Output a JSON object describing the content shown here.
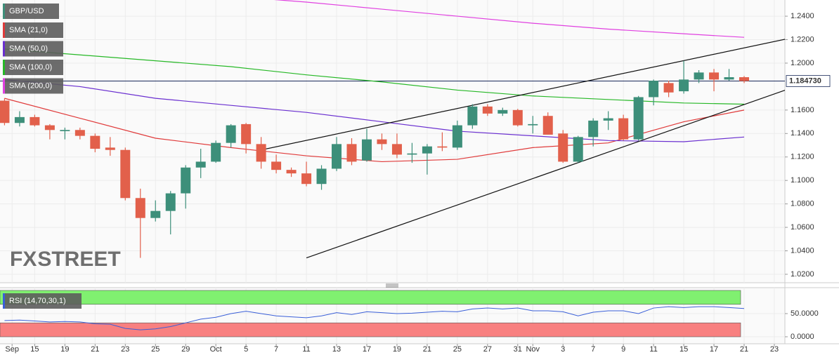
{
  "chart_data": [
    {
      "type": "candlestick",
      "name": "GBP/USD",
      "up_color": "#3d8f7a",
      "down_color": "#e2604b",
      "open": [
        1.168,
        1.149,
        1.154,
        1.147,
        1.142,
        1.143,
        1.138,
        1.128,
        1.126,
        1.085,
        1.068,
        1.074,
        1.089,
        1.111,
        1.116,
        1.132,
        1.148,
        1.131,
        1.116,
        1.109,
        1.106,
        1.097,
        1.11,
        1.131,
        1.117,
        1.135,
        1.131,
        1.122,
        1.123,
        1.129,
        1.128,
        1.147,
        1.163,
        1.157,
        1.16,
        1.147,
        1.155,
        1.14,
        1.116,
        1.137,
        1.151,
        1.153,
        1.135,
        1.171,
        1.183,
        1.176,
        1.186,
        1.192,
        1.186,
        1.188
      ],
      "high": [
        1.17,
        1.159,
        1.156,
        1.148,
        1.145,
        1.145,
        1.14,
        1.137,
        1.128,
        1.093,
        1.083,
        1.091,
        1.113,
        1.127,
        1.134,
        1.148,
        1.149,
        1.137,
        1.122,
        1.111,
        1.116,
        1.113,
        1.137,
        1.136,
        1.144,
        1.14,
        1.14,
        1.132,
        1.131,
        1.141,
        1.151,
        1.165,
        1.165,
        1.162,
        1.161,
        1.155,
        1.158,
        1.143,
        1.138,
        1.153,
        1.159,
        1.156,
        1.172,
        1.186,
        1.185,
        1.202,
        1.194,
        1.195,
        1.195,
        1.189
      ],
      "low": [
        1.147,
        1.146,
        1.146,
        1.135,
        1.135,
        1.135,
        1.124,
        1.121,
        1.083,
        1.034,
        1.065,
        1.054,
        1.076,
        1.102,
        1.115,
        1.128,
        1.123,
        1.11,
        1.106,
        1.103,
        1.095,
        1.092,
        1.108,
        1.113,
        1.116,
        1.126,
        1.119,
        1.115,
        1.105,
        1.125,
        1.126,
        1.144,
        1.155,
        1.155,
        1.146,
        1.14,
        1.139,
        1.115,
        1.115,
        1.129,
        1.143,
        1.134,
        1.134,
        1.164,
        1.171,
        1.174,
        1.183,
        1.176,
        1.185,
        1.183
      ],
      "close": [
        1.149,
        1.154,
        1.147,
        1.143,
        1.143,
        1.138,
        1.127,
        1.126,
        1.085,
        1.068,
        1.074,
        1.089,
        1.111,
        1.116,
        1.132,
        1.147,
        1.131,
        1.116,
        1.109,
        1.106,
        1.097,
        1.11,
        1.131,
        1.116,
        1.135,
        1.131,
        1.122,
        1.123,
        1.129,
        1.128,
        1.147,
        1.163,
        1.157,
        1.16,
        1.147,
        1.148,
        1.139,
        1.116,
        1.137,
        1.151,
        1.153,
        1.135,
        1.171,
        1.185,
        1.175,
        1.186,
        1.192,
        1.186,
        1.188,
        1.1847
      ],
      "xlim": [
        -0.3,
        51.7
      ],
      "ylim": [
        1.0128,
        1.2538
      ],
      "yticks": [
        {
          "value": 1.02,
          "label": "1.0200"
        },
        {
          "value": 1.04,
          "label": "1.0400"
        },
        {
          "value": 1.06,
          "label": "1.0600"
        },
        {
          "value": 1.08,
          "label": "1.0800"
        },
        {
          "value": 1.1,
          "label": "1.1000"
        },
        {
          "value": 1.12,
          "label": "1.1200"
        },
        {
          "value": 1.14,
          "label": "1.1400"
        },
        {
          "value": 1.16,
          "label": "1.1600"
        },
        {
          "value": 1.2,
          "label": "1.2000"
        },
        {
          "value": 1.22,
          "label": "1.2200"
        },
        {
          "value": 1.24,
          "label": "1.2400"
        }
      ],
      "xticks": [
        {
          "value": 0.5,
          "label": "Sep"
        },
        {
          "value": 2,
          "label": "15"
        },
        {
          "value": 4,
          "label": "19"
        },
        {
          "value": 6,
          "label": "21"
        },
        {
          "value": 8,
          "label": "23"
        },
        {
          "value": 10,
          "label": "25"
        },
        {
          "value": 12,
          "label": "29"
        },
        {
          "value": 14,
          "label": "Oct"
        },
        {
          "value": 16,
          "label": "5"
        },
        {
          "value": 18,
          "label": "7"
        },
        {
          "value": 20,
          "label": "11"
        },
        {
          "value": 22,
          "label": "13"
        },
        {
          "value": 24,
          "label": "17"
        },
        {
          "value": 26,
          "label": "19"
        },
        {
          "value": 28,
          "label": "21"
        },
        {
          "value": 30,
          "label": "25"
        },
        {
          "value": 32,
          "label": "27"
        },
        {
          "value": 34,
          "label": "31"
        },
        {
          "value": 35,
          "label": "Nov"
        },
        {
          "value": 37,
          "label": "3"
        },
        {
          "value": 39,
          "label": "7"
        },
        {
          "value": 41,
          "label": "9"
        },
        {
          "value": 43,
          "label": "11"
        },
        {
          "value": 45,
          "label": "15"
        },
        {
          "value": 47,
          "label": "17"
        },
        {
          "value": 49,
          "label": "21"
        },
        {
          "value": 51,
          "label": "23"
        }
      ],
      "overlays": [
        {
          "name": "SMA (21,0)",
          "color": "#e03a3a",
          "x": [
            0,
            5,
            10,
            15,
            20,
            25,
            30,
            35,
            40,
            45,
            49
          ],
          "values": [
            1.17,
            1.153,
            1.136,
            1.128,
            1.121,
            1.116,
            1.118,
            1.128,
            1.132,
            1.15,
            1.16
          ]
        },
        {
          "name": "SMA (50,0)",
          "color": "#6a2fd0",
          "x": [
            0,
            5,
            10,
            15,
            20,
            25,
            30,
            35,
            40,
            45,
            49
          ],
          "values": [
            1.186,
            1.18,
            1.17,
            1.164,
            1.158,
            1.15,
            1.142,
            1.138,
            1.134,
            1.133,
            1.137
          ]
        },
        {
          "name": "SMA (100,0)",
          "color": "#26b826",
          "x": [
            0,
            5,
            10,
            15,
            20,
            25,
            30,
            35,
            40,
            45,
            49
          ],
          "values": [
            1.212,
            1.207,
            1.202,
            1.197,
            1.19,
            1.184,
            1.177,
            1.172,
            1.169,
            1.166,
            1.165
          ]
        },
        {
          "name": "SMA (200,0)",
          "color": "#e040e0",
          "x": [
            15,
            20,
            25,
            30,
            35,
            40,
            45,
            49
          ],
          "values": [
            1.257,
            1.252,
            1.246,
            1.24,
            1.234,
            1.229,
            1.225,
            1.222
          ]
        }
      ],
      "trendlines": [
        {
          "color": "#111111",
          "x": [
            17,
            51.95
          ],
          "values": [
            1.126,
            1.221
          ]
        },
        {
          "color": "#111111",
          "x": [
            20,
            51.95
          ],
          "values": [
            1.034,
            1.178
          ]
        }
      ],
      "last_price": {
        "value": 1.18473,
        "label": "1.184730"
      },
      "watermark": [
        "FX",
        "STREET"
      ],
      "grid": true
    },
    {
      "type": "line",
      "name": "RSI (14,70,30,1)",
      "color": "#3a5fd8",
      "values": [
        35,
        36,
        34,
        32,
        33,
        32,
        28,
        27,
        18,
        15,
        17,
        22,
        30,
        38,
        42,
        50,
        55,
        50,
        45,
        43,
        41,
        45,
        52,
        48,
        54,
        52,
        50,
        51,
        53,
        55,
        54,
        60,
        62,
        60,
        62,
        56,
        56,
        54,
        45,
        53,
        56,
        56,
        50,
        62,
        65,
        63,
        65,
        65,
        63,
        61
      ],
      "ylim": [
        0,
        106
      ],
      "yticks": [
        {
          "value": 0,
          "label": "0.0000"
        },
        {
          "value": 50,
          "label": "50.0000"
        }
      ],
      "bands": [
        {
          "range": [
            70,
            100
          ],
          "color": "#80f070"
        },
        {
          "range": [
            0,
            30
          ],
          "color": "#f88080"
        }
      ]
    }
  ]
}
